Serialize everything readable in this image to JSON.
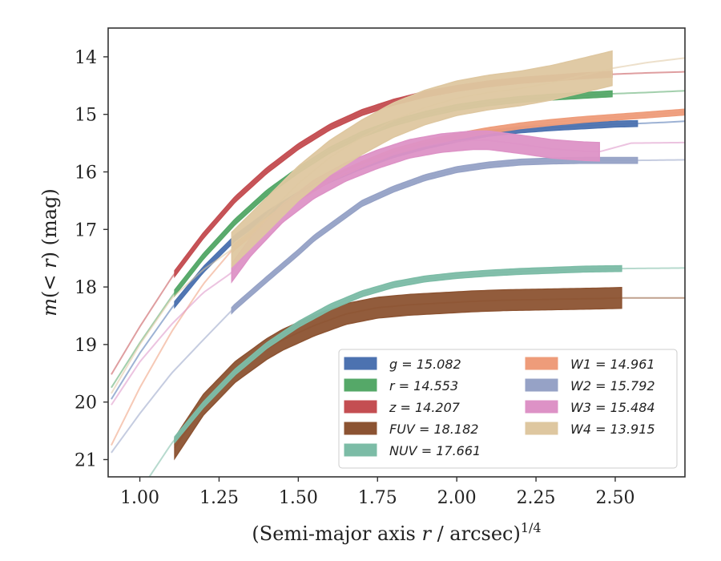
{
  "chart_data": {
    "type": "line",
    "xlabel_main": "(Semi-major axis ",
    "xlabel_var": "r",
    "xlabel_tail": " / arcsec)",
    "xlabel_exp": "1/4",
    "ylabel_var": "m",
    "ylabel_paren_open": "(",
    "ylabel_lt": "< ",
    "ylabel_r": "r",
    "ylabel_tail": ") (mag)",
    "xlim": [
      0.9,
      2.72
    ],
    "ylim": [
      21.3,
      13.5
    ],
    "y_inverted": true,
    "grid": false,
    "x_ticks": [
      "1.00",
      "1.25",
      "1.50",
      "1.75",
      "2.00",
      "2.25",
      "2.50"
    ],
    "y_ticks": [
      "14",
      "15",
      "16",
      "17",
      "18",
      "19",
      "20",
      "21"
    ],
    "legend_position": "lower-right",
    "legend": [
      {
        "label": "g = 15.082",
        "color": "#4C72B0"
      },
      {
        "label": "r = 14.553",
        "color": "#55A868"
      },
      {
        "label": "z = 14.207",
        "color": "#C44E52"
      },
      {
        "label": "FUV = 18.182",
        "color": "#8C5332"
      },
      {
        "label": "NUV = 17.661",
        "color": "#7CBCA6"
      },
      {
        "label": "W1 = 14.961",
        "color": "#EE9C7A"
      },
      {
        "label": "W2 = 15.792",
        "color": "#96A2C6"
      },
      {
        "label": "W3 = 15.484",
        "color": "#DD92C6"
      },
      {
        "label": "W4 = 13.915",
        "color": "#DEC7A0"
      }
    ],
    "series": [
      {
        "name": "g",
        "color": "#4C72B0",
        "x": [
          0.91,
          1.0,
          1.1,
          1.2,
          1.3,
          1.4,
          1.5,
          1.6,
          1.7,
          1.8,
          1.9,
          2.0,
          2.1,
          2.2,
          2.3,
          2.4,
          2.5,
          2.57,
          2.65,
          2.72
        ],
        "y": [
          19.95,
          19.15,
          18.37,
          17.7,
          17.15,
          16.74,
          16.4,
          16.13,
          15.9,
          15.7,
          15.55,
          15.43,
          15.33,
          15.27,
          15.23,
          15.2,
          15.17,
          15.16,
          15.14,
          15.12
        ],
        "solid_range": [
          1.11,
          2.57
        ],
        "band": 0.05
      },
      {
        "name": "r",
        "color": "#55A868",
        "x": [
          0.91,
          1.0,
          1.1,
          1.2,
          1.3,
          1.4,
          1.5,
          1.6,
          1.7,
          1.8,
          1.9,
          2.0,
          2.1,
          2.2,
          2.3,
          2.4,
          2.5,
          2.6,
          2.72
        ],
        "y": [
          19.75,
          18.97,
          18.17,
          17.47,
          16.87,
          16.37,
          15.97,
          15.62,
          15.35,
          15.15,
          15.0,
          14.88,
          14.8,
          14.74,
          14.7,
          14.67,
          14.64,
          14.62,
          14.59
        ],
        "solid_range": [
          1.11,
          2.49
        ],
        "band": 0.05
      },
      {
        "name": "z",
        "color": "#C44E52",
        "x": [
          0.91,
          1.0,
          1.1,
          1.2,
          1.3,
          1.4,
          1.5,
          1.6,
          1.7,
          1.8,
          1.9,
          2.0,
          2.1,
          2.2,
          2.3,
          2.4,
          2.5,
          2.6,
          2.72
        ],
        "y": [
          19.52,
          18.69,
          17.84,
          17.11,
          16.48,
          15.98,
          15.56,
          15.22,
          14.97,
          14.79,
          14.65,
          14.55,
          14.47,
          14.41,
          14.37,
          14.33,
          14.3,
          14.28,
          14.26
        ],
        "solid_range": [
          1.11,
          2.49
        ],
        "band": 0.05
      },
      {
        "name": "FUV",
        "color": "#8C5332",
        "x": [
          1.11,
          1.2,
          1.3,
          1.4,
          1.45,
          1.55,
          1.65,
          1.75,
          1.85,
          1.95,
          2.05,
          2.15,
          2.25,
          2.35,
          2.45,
          2.52,
          2.72
        ],
        "y": [
          20.8,
          20.05,
          19.48,
          19.08,
          18.92,
          18.67,
          18.47,
          18.36,
          18.31,
          18.28,
          18.25,
          18.23,
          18.22,
          18.21,
          18.2,
          18.19,
          18.19
        ],
        "solid_range": [
          1.11,
          2.52
        ],
        "band": 0.18
      },
      {
        "name": "NUV",
        "color": "#7CBCA6",
        "x": [
          1.03,
          1.1,
          1.2,
          1.3,
          1.4,
          1.5,
          1.6,
          1.7,
          1.8,
          1.9,
          2.0,
          2.1,
          2.2,
          2.3,
          2.4,
          2.52,
          2.72
        ],
        "y": [
          21.3,
          20.72,
          20.05,
          19.48,
          19.02,
          18.65,
          18.35,
          18.12,
          17.96,
          17.86,
          17.8,
          17.76,
          17.73,
          17.71,
          17.69,
          17.68,
          17.67
        ],
        "solid_range": [
          1.11,
          2.52
        ],
        "band": 0.05
      },
      {
        "name": "W1",
        "color": "#EE9C7A",
        "x": [
          0.91,
          1.0,
          1.1,
          1.2,
          1.3,
          1.4,
          1.5,
          1.6,
          1.7,
          1.8,
          1.9,
          2.0,
          2.1,
          2.2,
          2.3,
          2.4,
          2.5,
          2.6,
          2.72
        ],
        "y": [
          20.75,
          19.75,
          18.78,
          17.95,
          17.3,
          16.85,
          16.45,
          16.12,
          15.87,
          15.65,
          15.5,
          15.38,
          15.28,
          15.2,
          15.14,
          15.09,
          15.05,
          15.01,
          14.96
        ],
        "solid_range": [
          1.29,
          2.72
        ],
        "band": 0.05
      },
      {
        "name": "W2",
        "color": "#96A2C6",
        "x": [
          0.91,
          1.0,
          1.1,
          1.2,
          1.3,
          1.4,
          1.5,
          1.55,
          1.6,
          1.7,
          1.8,
          1.9,
          2.0,
          2.1,
          2.2,
          2.3,
          2.4,
          2.5,
          2.57,
          2.72
        ],
        "y": [
          20.88,
          20.2,
          19.5,
          18.92,
          18.35,
          17.87,
          17.4,
          17.15,
          16.95,
          16.55,
          16.3,
          16.1,
          15.96,
          15.88,
          15.83,
          15.81,
          15.8,
          15.8,
          15.8,
          15.79
        ],
        "solid_range": [
          1.29,
          2.57
        ],
        "band": 0.05
      },
      {
        "name": "W3",
        "color": "#DD92C6",
        "x": [
          0.91,
          1.0,
          1.1,
          1.2,
          1.29,
          1.35,
          1.45,
          1.55,
          1.65,
          1.75,
          1.85,
          1.95,
          2.05,
          2.1,
          2.2,
          2.3,
          2.35,
          2.4,
          2.45,
          2.55,
          2.72
        ],
        "y": [
          20.05,
          19.3,
          18.65,
          18.1,
          17.75,
          17.3,
          16.72,
          16.3,
          16.0,
          15.78,
          15.6,
          15.5,
          15.45,
          15.45,
          15.52,
          15.6,
          15.62,
          15.64,
          15.65,
          15.5,
          15.49
        ],
        "solid_range": [
          1.29,
          2.45
        ],
        "band": 0.16
      },
      {
        "name": "W4",
        "color": "#DEC7A0",
        "x": [
          0.91,
          1.0,
          1.1,
          1.2,
          1.29,
          1.4,
          1.5,
          1.6,
          1.7,
          1.8,
          1.9,
          2.0,
          2.1,
          2.2,
          2.3,
          2.4,
          2.49,
          2.6,
          2.72
        ],
        "y": [
          19.85,
          19.0,
          18.2,
          17.7,
          17.35,
          16.75,
          16.2,
          15.75,
          15.4,
          15.1,
          14.88,
          14.72,
          14.62,
          14.55,
          14.45,
          14.32,
          14.2,
          14.1,
          14.02
        ],
        "solid_range": [
          1.29,
          2.49
        ],
        "band": 0.3
      }
    ]
  }
}
